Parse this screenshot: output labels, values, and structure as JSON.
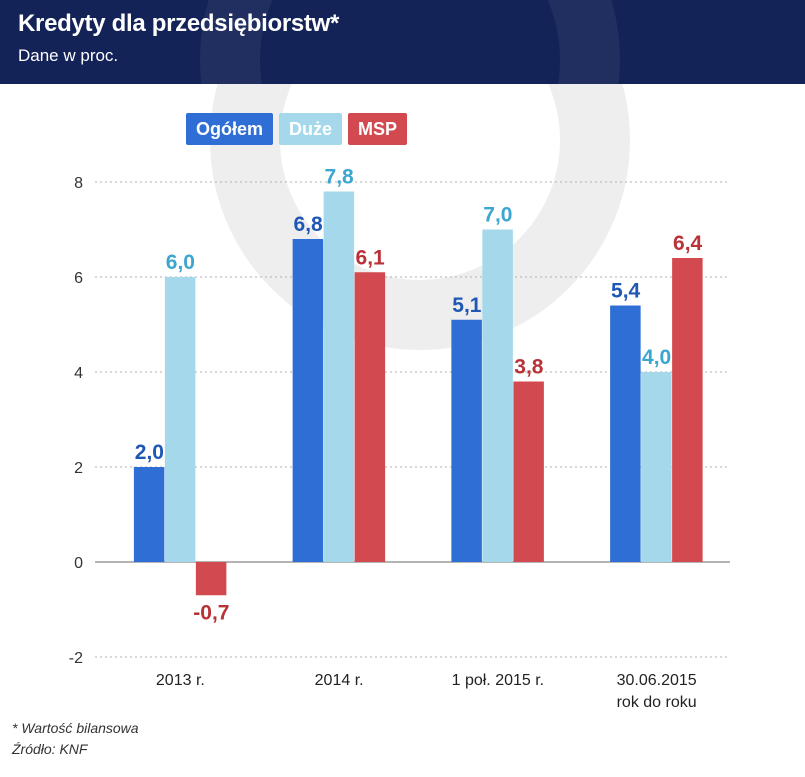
{
  "header": {
    "title": "Kredyty dla przedsiębiorstw*",
    "subtitle": "Dane w proc."
  },
  "legend": [
    {
      "label": "Ogółem"
    },
    {
      "label": "Duże"
    },
    {
      "label": "MSP"
    }
  ],
  "colors": {
    "ogolem": "#2f6fd5",
    "duze": "#a5d8ea",
    "msp": "#d24a4f",
    "ogolem_label": "#1f57b5",
    "duze_label": "#3ba6d0",
    "msp_label": "#b93238",
    "header_bg": "#132257"
  },
  "chart_data": {
    "type": "bar",
    "categories": [
      "2013 r.",
      "2014 r.",
      "1 poł. 2015 r.",
      "30.06.2015\nrok do roku"
    ],
    "series": [
      {
        "name": "Ogółem",
        "values": [
          2.0,
          6.8,
          5.1,
          5.4
        ],
        "labels": [
          "2,0",
          "6,8",
          "5,1",
          "5,4"
        ]
      },
      {
        "name": "Duże",
        "values": [
          6.0,
          7.8,
          7.0,
          4.0
        ],
        "labels": [
          "6,0",
          "7,8",
          "7,0",
          "4,0"
        ]
      },
      {
        "name": "MSP",
        "values": [
          -0.7,
          6.1,
          3.8,
          6.4
        ],
        "labels": [
          "-0,7",
          "6,1",
          "3,8",
          "6,4"
        ]
      }
    ],
    "yticks": [
      -2,
      0,
      2,
      4,
      6,
      8
    ],
    "ylim": [
      -2,
      8
    ],
    "grid": true,
    "legend_position": "top-left"
  },
  "footer": {
    "note": "* Wartość bilansowa",
    "source": "Źródło: KNF"
  }
}
